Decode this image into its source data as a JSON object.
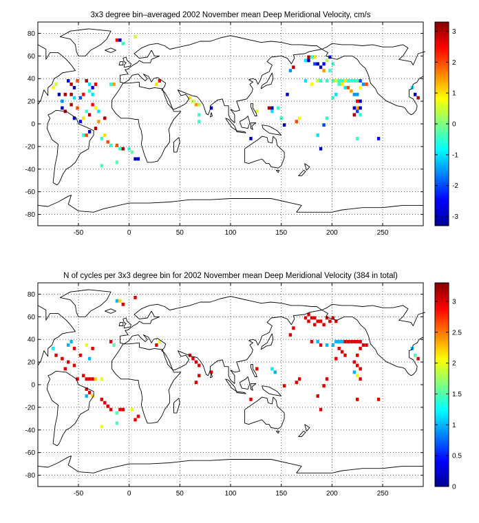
{
  "figure": {
    "colors": {
      "background": "#ffffff",
      "axes": "#000000",
      "grid": "#000000",
      "coast": "#000000"
    }
  },
  "chart_data": [
    {
      "type": "heatmap",
      "title": "3x3 degree bin–averaged 2002 November mean Deep Meridional Velocity, cm/s",
      "xlabel": "",
      "ylabel": "",
      "xlim": [
        -90,
        290
      ],
      "ylim": [
        -90,
        90
      ],
      "xticks": [
        -50,
        0,
        50,
        100,
        150,
        200,
        250
      ],
      "yticks": [
        -80,
        -60,
        -40,
        -20,
        0,
        20,
        40,
        60,
        80
      ],
      "grid": true,
      "colormap": "jet",
      "colorbar": {
        "range": [
          -3.3,
          3.3
        ],
        "ticks": [
          -3,
          -2,
          -1,
          0,
          1,
          2,
          3
        ]
      },
      "cells": [
        [
          -75,
          32,
          0.8
        ],
        [
          -72,
          35,
          0.5
        ],
        [
          -69,
          26,
          -3
        ],
        [
          -66,
          20,
          -1.5
        ],
        [
          -63,
          26,
          3
        ],
        [
          -60,
          38,
          -2.5
        ],
        [
          -57,
          35,
          3
        ],
        [
          -54,
          32,
          -3
        ],
        [
          -57,
          26,
          3
        ],
        [
          -54,
          23,
          -1
        ],
        [
          -51,
          38,
          2
        ],
        [
          -48,
          23,
          -2
        ],
        [
          -45,
          26,
          2.5
        ],
        [
          -42,
          38,
          3
        ],
        [
          -39,
          35,
          -1
        ],
        [
          -39,
          29,
          -0.5
        ],
        [
          -36,
          32,
          -2.5
        ],
        [
          -36,
          26,
          -1
        ],
        [
          -33,
          35,
          2.5
        ],
        [
          -66,
          14,
          -3
        ],
        [
          -63,
          11,
          3
        ],
        [
          -57,
          17,
          3
        ],
        [
          -54,
          5,
          -3
        ],
        [
          -51,
          14,
          2
        ],
        [
          -48,
          2,
          -2.5
        ],
        [
          -45,
          5,
          1
        ],
        [
          -42,
          11,
          -0.5
        ],
        [
          -39,
          8,
          3
        ],
        [
          -36,
          17,
          2.5
        ],
        [
          -33,
          14,
          0.8
        ],
        [
          -30,
          11,
          -1
        ],
        [
          -39,
          -7,
          -3
        ],
        [
          -42,
          -10,
          2
        ],
        [
          -45,
          -10,
          -0.5
        ],
        [
          -33,
          -4,
          3
        ],
        [
          -30,
          2,
          1.5
        ],
        [
          -24,
          5,
          3
        ],
        [
          -27,
          -13,
          -0.5
        ],
        [
          -24,
          -10,
          1
        ],
        [
          -21,
          -16,
          2
        ],
        [
          -18,
          -19,
          -0.5
        ],
        [
          -12,
          -19,
          2
        ],
        [
          -9,
          -22,
          -0.5
        ],
        [
          -6,
          -22,
          3
        ],
        [
          0,
          -22,
          -0.5
        ],
        [
          3,
          -25,
          -0.2
        ],
        [
          6,
          -31,
          -3
        ],
        [
          9,
          -31,
          -3
        ],
        [
          -27,
          -37,
          -0.3
        ],
        [
          -12,
          -34,
          -0.3
        ],
        [
          -18,
          35,
          -0.5
        ],
        [
          -15,
          35,
          1.5
        ],
        [
          -12,
          74,
          2.5
        ],
        [
          -9,
          74,
          -3
        ],
        [
          -6,
          71,
          -0.5
        ],
        [
          6,
          77,
          0.5
        ],
        [
          27,
          35,
          1
        ],
        [
          30,
          38,
          2.5
        ],
        [
          60,
          23,
          1
        ],
        [
          63,
          20,
          0.5
        ],
        [
          66,
          17,
          1.5
        ],
        [
          69,
          17,
          0.3
        ],
        [
          69,
          8,
          -0.5
        ],
        [
          81,
          14,
          -3
        ],
        [
          69,
          2,
          -0.5
        ],
        [
          126,
          11,
          0.5
        ],
        [
          138,
          14,
          3
        ],
        [
          141,
          14,
          -3
        ],
        [
          141,
          11,
          -1
        ],
        [
          147,
          14,
          -0.5
        ],
        [
          150,
          5,
          -0.5
        ],
        [
          156,
          26,
          -3
        ],
        [
          159,
          47,
          -1.5
        ],
        [
          162,
          50,
          3
        ],
        [
          165,
          2,
          2
        ],
        [
          168,
          5,
          0.8
        ],
        [
          174,
          56,
          -1
        ],
        [
          177,
          59,
          3
        ],
        [
          177,
          56,
          -3
        ],
        [
          180,
          59,
          -0.5
        ],
        [
          183,
          59,
          1
        ],
        [
          183,
          53,
          -2
        ],
        [
          186,
          53,
          -3
        ],
        [
          189,
          50,
          -3
        ],
        [
          192,
          53,
          -2.5
        ],
        [
          195,
          56,
          0.3
        ],
        [
          198,
          59,
          -2.5
        ],
        [
          201,
          53,
          -0.5
        ],
        [
          192,
          47,
          1.5
        ],
        [
          198,
          47,
          -0.5
        ],
        [
          174,
          38,
          -1
        ],
        [
          180,
          35,
          0.8
        ],
        [
          186,
          38,
          0.5
        ],
        [
          189,
          38,
          -0.5
        ],
        [
          195,
          38,
          -0.5
        ],
        [
          201,
          38,
          -0.3
        ],
        [
          204,
          38,
          0.5
        ],
        [
          207,
          38,
          -0.5
        ],
        [
          210,
          38,
          -0.5
        ],
        [
          213,
          38,
          1
        ],
        [
          216,
          38,
          -0.5
        ],
        [
          219,
          38,
          -0.5
        ],
        [
          222,
          38,
          -0.5
        ],
        [
          225,
          38,
          -0.3
        ],
        [
          228,
          38,
          -2
        ],
        [
          228,
          32,
          0.8
        ],
        [
          231,
          35,
          -1.5
        ],
        [
          234,
          35,
          2
        ],
        [
          207,
          35,
          -0.5
        ],
        [
          210,
          35,
          1
        ],
        [
          213,
          32,
          -1
        ],
        [
          216,
          32,
          2
        ],
        [
          219,
          29,
          1.5
        ],
        [
          222,
          26,
          -1.5
        ],
        [
          204,
          26,
          -1
        ],
        [
          201,
          23,
          -0.5
        ],
        [
          225,
          26,
          -1.5
        ],
        [
          225,
          20,
          2.5
        ],
        [
          228,
          20,
          -3
        ],
        [
          222,
          14,
          -3
        ],
        [
          225,
          14,
          1.5
        ],
        [
          228,
          14,
          -3
        ],
        [
          225,
          11,
          -2
        ],
        [
          222,
          8,
          3
        ],
        [
          228,
          8,
          -0.5
        ],
        [
          195,
          5,
          -0.5
        ],
        [
          192,
          -1,
          -2
        ],
        [
          186,
          -10,
          -1
        ],
        [
          189,
          -22,
          -3
        ],
        [
          225,
          -13,
          -0.5
        ],
        [
          246,
          -13,
          -2.5
        ],
        [
          120,
          -13,
          -3
        ],
        [
          153,
          -1,
          -3
        ],
        [
          279,
          32,
          -1
        ],
        [
          282,
          26,
          -3
        ],
        [
          285,
          23,
          3
        ]
      ]
    },
    {
      "type": "heatmap",
      "title": "N of cycles per 3x3 degree bin for 2002 November mean Deep Meridional Velocity (384 in total)",
      "xlabel": "",
      "ylabel": "",
      "xlim": [
        -90,
        290
      ],
      "ylim": [
        -90,
        90
      ],
      "xticks": [
        -50,
        0,
        50,
        100,
        150,
        200,
        250
      ],
      "yticks": [
        -80,
        -60,
        -40,
        -20,
        0,
        20,
        40,
        60,
        80
      ],
      "grid": true,
      "colormap": "jet",
      "colorbar": {
        "range": [
          0,
          3.3
        ],
        "ticks": [
          0,
          0.5,
          1,
          1.5,
          2,
          2.5,
          3
        ]
      },
      "cells": [
        [
          -75,
          32,
          1.2
        ],
        [
          -72,
          26,
          3
        ],
        [
          -66,
          23,
          3
        ],
        [
          -60,
          35,
          1
        ],
        [
          -57,
          38,
          1
        ],
        [
          -54,
          32,
          3
        ],
        [
          -48,
          26,
          3
        ],
        [
          -42,
          35,
          2
        ],
        [
          -36,
          32,
          3
        ],
        [
          -39,
          23,
          1
        ],
        [
          -63,
          14,
          3
        ],
        [
          -60,
          20,
          3
        ],
        [
          -54,
          17,
          3
        ],
        [
          -51,
          5,
          3
        ],
        [
          -45,
          8,
          3
        ],
        [
          -42,
          5,
          3
        ],
        [
          -39,
          5,
          3
        ],
        [
          -36,
          5,
          3
        ],
        [
          -33,
          5,
          2.2
        ],
        [
          -27,
          5,
          2
        ],
        [
          -42,
          -4,
          3
        ],
        [
          -39,
          -7,
          3
        ],
        [
          -42,
          -10,
          1
        ],
        [
          -36,
          -10,
          2.2
        ],
        [
          -27,
          -13,
          3
        ],
        [
          -24,
          -16,
          3
        ],
        [
          -21,
          -19,
          3
        ],
        [
          -18,
          -22,
          3
        ],
        [
          -12,
          -25,
          1.5
        ],
        [
          -9,
          -22,
          3
        ],
        [
          -6,
          -22,
          3
        ],
        [
          3,
          -22,
          2
        ],
        [
          6,
          -31,
          3
        ],
        [
          9,
          -28,
          3
        ],
        [
          -27,
          -37,
          2
        ],
        [
          -12,
          -34,
          1.5
        ],
        [
          -18,
          38,
          3
        ],
        [
          -15,
          35,
          1.5
        ],
        [
          -12,
          74,
          1
        ],
        [
          -9,
          74,
          2.2
        ],
        [
          -6,
          71,
          3
        ],
        [
          6,
          77,
          3
        ],
        [
          27,
          35,
          3
        ],
        [
          30,
          38,
          2
        ],
        [
          60,
          26,
          3
        ],
        [
          63,
          23,
          3
        ],
        [
          66,
          20,
          3
        ],
        [
          69,
          17,
          3
        ],
        [
          69,
          8,
          3
        ],
        [
          66,
          2,
          3
        ],
        [
          81,
          11,
          3
        ],
        [
          126,
          14,
          3
        ],
        [
          141,
          14,
          1.2
        ],
        [
          144,
          11,
          1
        ],
        [
          153,
          -1,
          3
        ],
        [
          159,
          44,
          3
        ],
        [
          162,
          50,
          3
        ],
        [
          165,
          2,
          3
        ],
        [
          168,
          5,
          3
        ],
        [
          174,
          59,
          3
        ],
        [
          177,
          56,
          3
        ],
        [
          177,
          62,
          3
        ],
        [
          180,
          59,
          3
        ],
        [
          183,
          59,
          3
        ],
        [
          183,
          53,
          3
        ],
        [
          186,
          56,
          3
        ],
        [
          189,
          56,
          3
        ],
        [
          192,
          53,
          3
        ],
        [
          195,
          59,
          3
        ],
        [
          198,
          56,
          3
        ],
        [
          201,
          59,
          3
        ],
        [
          204,
          56,
          3
        ],
        [
          180,
          38,
          3
        ],
        [
          186,
          38,
          1
        ],
        [
          189,
          35,
          3
        ],
        [
          195,
          35,
          1
        ],
        [
          201,
          35,
          1
        ],
        [
          204,
          38,
          1
        ],
        [
          207,
          38,
          1
        ],
        [
          210,
          38,
          1
        ],
        [
          213,
          38,
          3
        ],
        [
          216,
          38,
          3
        ],
        [
          219,
          38,
          3
        ],
        [
          222,
          38,
          3
        ],
        [
          225,
          38,
          3
        ],
        [
          228,
          38,
          3
        ],
        [
          231,
          35,
          3
        ],
        [
          234,
          35,
          3
        ],
        [
          228,
          32,
          3
        ],
        [
          207,
          32,
          3
        ],
        [
          210,
          29,
          3
        ],
        [
          213,
          26,
          3
        ],
        [
          204,
          23,
          3
        ],
        [
          225,
          26,
          3
        ],
        [
          222,
          20,
          3
        ],
        [
          225,
          17,
          3
        ],
        [
          228,
          14,
          3
        ],
        [
          222,
          11,
          1
        ],
        [
          225,
          8,
          2
        ],
        [
          228,
          5,
          3
        ],
        [
          195,
          5,
          3
        ],
        [
          192,
          -1,
          3
        ],
        [
          186,
          -10,
          3
        ],
        [
          189,
          -22,
          3
        ],
        [
          225,
          -13,
          3
        ],
        [
          246,
          -13,
          3
        ],
        [
          120,
          -13,
          3
        ],
        [
          279,
          32,
          1
        ],
        [
          282,
          26,
          1.5
        ],
        [
          285,
          23,
          3
        ]
      ]
    }
  ]
}
